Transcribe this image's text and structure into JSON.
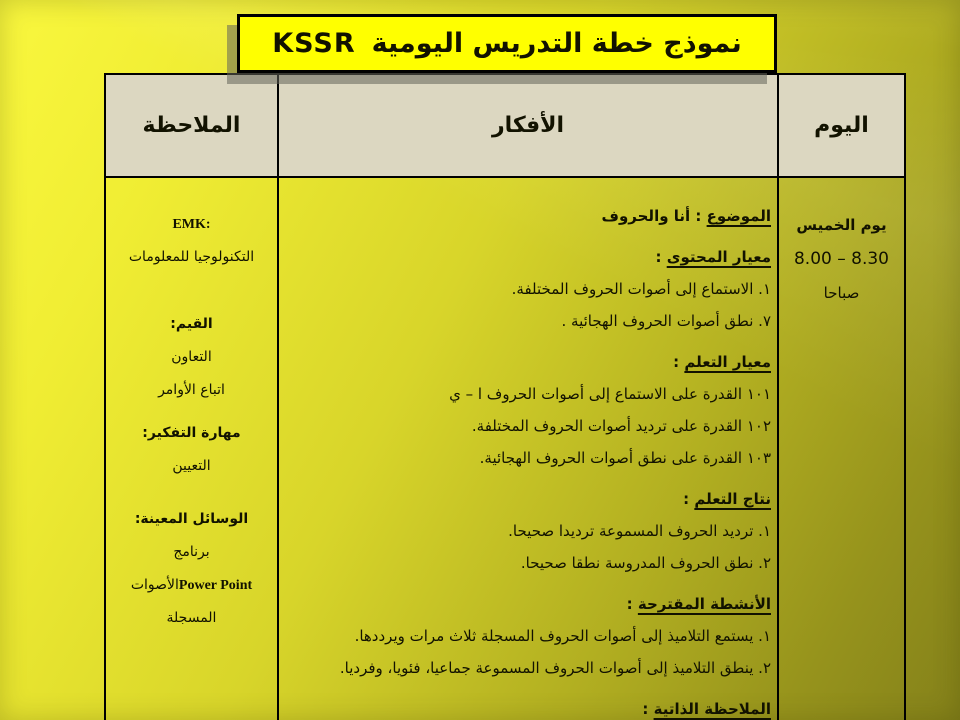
{
  "colors": {
    "bg_light": "#f9f73e",
    "bg_mid": "#d8d52a",
    "bg_dark": "#84811a",
    "title_bg": "#ffff00",
    "header_bg": "#dcd7c1",
    "border": "#000000",
    "text": "#121200"
  },
  "title": {
    "ar": "نموذج خطة التدريس اليومية",
    "latin": "KSSR"
  },
  "table": {
    "header": {
      "day": "اليوم",
      "ideas": "الأفكار",
      "notes": "الملاحظة"
    },
    "day": {
      "weekday": "يوم الخميس",
      "time": "8.00 – 8.30",
      "period": "صباحا"
    },
    "ideas": {
      "sections": [
        {
          "heading": "الموضوع",
          "rest": " : أنا والحروف",
          "items": []
        },
        {
          "heading": "معيار المحتوى",
          "rest": " :",
          "items": [
            "١. الاستماع إلى أصوات الحروف المختلفة.",
            "٧. نطق أصوات الحروف الهجائية ."
          ]
        },
        {
          "heading": "معيار التعلم",
          "rest": " :",
          "items": [
            "١٠١ القدرة على الاستماع إلى أصوات الحروف ا – ي",
            "١٠٢ القدرة على ترديد أصوات الحروف المختلفة.",
            "١٠٣ القدرة على نطق أصوات الحروف الهجائية."
          ]
        },
        {
          "heading": "نتاج التعلم",
          "rest": " :",
          "items": [
            "١. ترديد الحروف المسموعة ترديدا صحيحا.",
            "٢. نطق الحروف المدروسة نطقا صحيحا."
          ]
        },
        {
          "heading": "الأنشطة المقترحة",
          "rest": " :",
          "items": [
            "١. يستمع التلاميذ إلى أصوات الحروف المسجلة ثلاث مرات ويرددها.",
            "٢. ينطق التلاميذ إلى أصوات الحروف المسموعة جماعيا، فئويا، وفرديا."
          ]
        },
        {
          "heading": "الملاحظة الذاتية",
          "rest": " :",
          "items": []
        }
      ]
    },
    "notes": {
      "emk_label": "EMK:",
      "emk_value": "التكنولوجيا للمعلومات",
      "values_label": "القيم:",
      "values_item1": "التعاون",
      "values_item2": "اتباع الأوامر",
      "thinking_label": "مهارة التفكير:",
      "thinking_value": "التعيين",
      "aids_label": "الوسائل المعينة:",
      "aids_line1": "برنامج",
      "aids_line2_latin": "Power Point",
      "aids_line2_ar": "الأصوات",
      "aids_line3": "المسجلة"
    }
  }
}
